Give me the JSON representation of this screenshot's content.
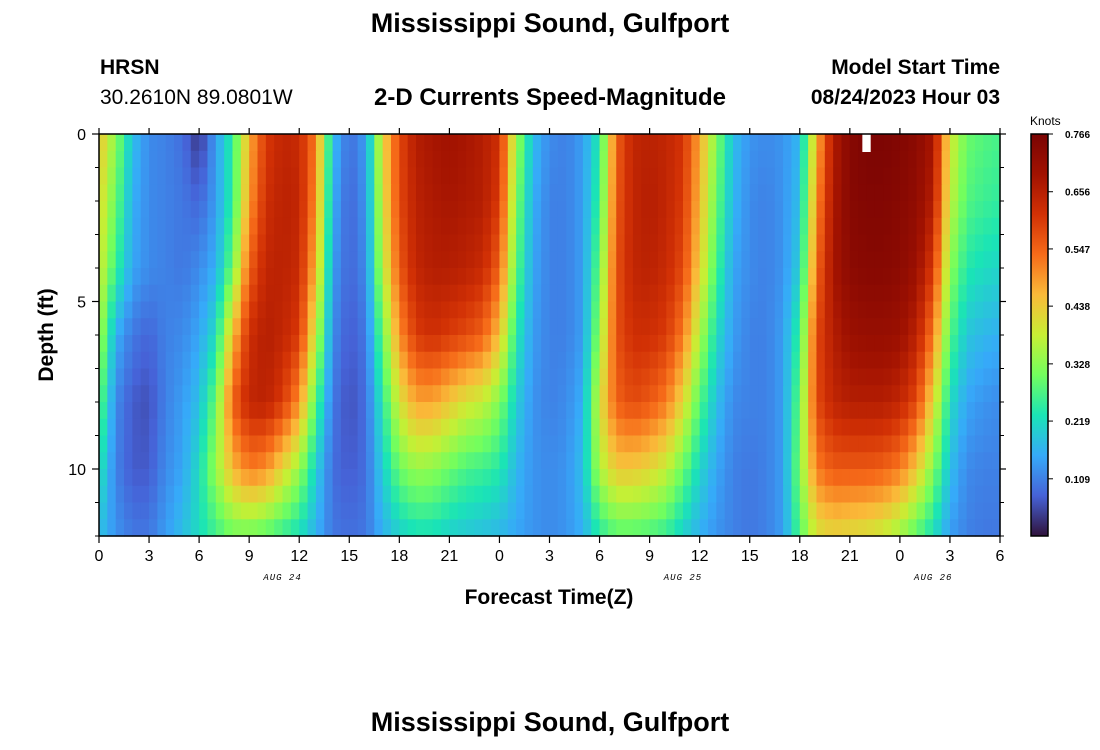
{
  "header": {
    "title": "Mississippi Sound, Gulfport",
    "station": "HRSN",
    "coordinates": "30.2610N  89.0801W",
    "subtitle": "2-D Currents Speed-Magnitude",
    "model_start_label": "Model Start Time",
    "model_start_value": "08/24/2023 Hour 03",
    "footer_title": "Mississippi Sound, Gulfport"
  },
  "chart_data": {
    "type": "heatmap",
    "title": "2-D Currents Speed-Magnitude",
    "xlabel": "Forecast Time(Z)",
    "ylabel": "Depth (ft)",
    "x_tick_labels": [
      "0",
      "3",
      "6",
      "9",
      "12",
      "15",
      "18",
      "21",
      "0",
      "3",
      "6",
      "9",
      "12",
      "15",
      "18",
      "21",
      "0",
      "3",
      "6"
    ],
    "x_range_hours": [
      0,
      54
    ],
    "date_labels": [
      {
        "text": "AUG 24",
        "hour": 11
      },
      {
        "text": "AUG 25",
        "hour": 35
      },
      {
        "text": "AUG 26",
        "hour": 50
      }
    ],
    "y_tick_labels": [
      "0",
      "5",
      "10"
    ],
    "y_tick_values": [
      0,
      5,
      10
    ],
    "ylim": [
      0,
      12
    ],
    "y_inverted": true,
    "colorbar": {
      "label": "Knots",
      "ticks": [
        "0.766",
        "0.656",
        "0.547",
        "0.438",
        "0.328",
        "0.219",
        "0.109"
      ],
      "range": [
        0.0,
        0.766
      ],
      "colormap": "turbo"
    },
    "time_hours": [
      0,
      1,
      2,
      3,
      4,
      5,
      6,
      7,
      8,
      9,
      10,
      11,
      12,
      13,
      14,
      15,
      16,
      17,
      18,
      19,
      20,
      21,
      22,
      23,
      24,
      25,
      26,
      27,
      28,
      29,
      30,
      31,
      32,
      33,
      34,
      35,
      36,
      37,
      38,
      39,
      40,
      41,
      42,
      43,
      44,
      45,
      46,
      47,
      48,
      49,
      50,
      51,
      52,
      53,
      54
    ],
    "depth_ft": [
      0,
      2,
      4,
      6,
      8,
      10,
      12
    ],
    "speed_knots": [
      [
        0.45,
        0.33,
        0.18,
        0.12,
        0.11,
        0.09,
        0.03,
        0.14,
        0.25,
        0.47,
        0.6,
        0.64,
        0.63,
        0.52,
        0.18,
        0.09,
        0.14,
        0.42,
        0.58,
        0.66,
        0.68,
        0.69,
        0.68,
        0.66,
        0.62,
        0.35,
        0.18,
        0.12,
        0.11,
        0.14,
        0.24,
        0.55,
        0.64,
        0.65,
        0.64,
        0.61,
        0.48,
        0.32,
        0.18,
        0.13,
        0.12,
        0.13,
        0.17,
        0.46,
        0.66,
        0.74,
        0.76,
        0.76,
        0.75,
        0.73,
        0.68,
        0.4,
        0.3,
        0.28,
        0.27
      ],
      [
        0.42,
        0.3,
        0.16,
        0.12,
        0.11,
        0.1,
        0.08,
        0.14,
        0.25,
        0.49,
        0.62,
        0.65,
        0.64,
        0.5,
        0.16,
        0.08,
        0.13,
        0.4,
        0.58,
        0.65,
        0.67,
        0.68,
        0.67,
        0.66,
        0.6,
        0.32,
        0.16,
        0.11,
        0.11,
        0.14,
        0.26,
        0.56,
        0.64,
        0.66,
        0.64,
        0.6,
        0.46,
        0.3,
        0.17,
        0.12,
        0.11,
        0.13,
        0.18,
        0.5,
        0.67,
        0.74,
        0.75,
        0.75,
        0.74,
        0.72,
        0.66,
        0.38,
        0.28,
        0.26,
        0.25
      ],
      [
        0.4,
        0.26,
        0.15,
        0.12,
        0.11,
        0.1,
        0.12,
        0.16,
        0.3,
        0.55,
        0.64,
        0.65,
        0.63,
        0.46,
        0.14,
        0.08,
        0.12,
        0.37,
        0.56,
        0.64,
        0.66,
        0.66,
        0.65,
        0.63,
        0.55,
        0.29,
        0.15,
        0.11,
        0.11,
        0.14,
        0.3,
        0.57,
        0.64,
        0.65,
        0.63,
        0.58,
        0.43,
        0.27,
        0.15,
        0.12,
        0.11,
        0.13,
        0.2,
        0.54,
        0.68,
        0.73,
        0.74,
        0.74,
        0.73,
        0.7,
        0.6,
        0.33,
        0.24,
        0.22,
        0.21
      ],
      [
        0.36,
        0.16,
        0.1,
        0.08,
        0.11,
        0.12,
        0.15,
        0.22,
        0.45,
        0.62,
        0.66,
        0.64,
        0.6,
        0.38,
        0.12,
        0.07,
        0.1,
        0.3,
        0.5,
        0.6,
        0.62,
        0.6,
        0.58,
        0.55,
        0.45,
        0.24,
        0.14,
        0.11,
        0.11,
        0.14,
        0.34,
        0.57,
        0.62,
        0.62,
        0.6,
        0.52,
        0.36,
        0.22,
        0.14,
        0.11,
        0.11,
        0.14,
        0.26,
        0.58,
        0.66,
        0.7,
        0.71,
        0.71,
        0.7,
        0.65,
        0.52,
        0.28,
        0.19,
        0.17,
        0.16
      ],
      [
        0.3,
        0.12,
        0.07,
        0.06,
        0.11,
        0.14,
        0.18,
        0.3,
        0.55,
        0.64,
        0.65,
        0.6,
        0.5,
        0.28,
        0.1,
        0.06,
        0.09,
        0.24,
        0.4,
        0.48,
        0.48,
        0.44,
        0.4,
        0.38,
        0.32,
        0.2,
        0.13,
        0.11,
        0.12,
        0.16,
        0.4,
        0.55,
        0.58,
        0.56,
        0.52,
        0.42,
        0.28,
        0.18,
        0.12,
        0.11,
        0.11,
        0.14,
        0.3,
        0.58,
        0.64,
        0.66,
        0.66,
        0.66,
        0.64,
        0.58,
        0.42,
        0.22,
        0.15,
        0.13,
        0.12
      ],
      [
        0.24,
        0.11,
        0.07,
        0.07,
        0.12,
        0.15,
        0.22,
        0.34,
        0.46,
        0.52,
        0.5,
        0.42,
        0.34,
        0.2,
        0.09,
        0.07,
        0.09,
        0.2,
        0.3,
        0.34,
        0.33,
        0.3,
        0.27,
        0.26,
        0.24,
        0.17,
        0.13,
        0.12,
        0.13,
        0.18,
        0.36,
        0.44,
        0.44,
        0.42,
        0.38,
        0.3,
        0.21,
        0.15,
        0.11,
        0.1,
        0.11,
        0.14,
        0.32,
        0.52,
        0.56,
        0.56,
        0.56,
        0.55,
        0.52,
        0.44,
        0.32,
        0.18,
        0.12,
        0.11,
        0.11
      ],
      [
        0.18,
        0.13,
        0.1,
        0.1,
        0.14,
        0.18,
        0.22,
        0.26,
        0.3,
        0.3,
        0.28,
        0.25,
        0.22,
        0.16,
        0.1,
        0.09,
        0.1,
        0.16,
        0.2,
        0.22,
        0.22,
        0.2,
        0.19,
        0.18,
        0.17,
        0.15,
        0.13,
        0.12,
        0.13,
        0.16,
        0.24,
        0.28,
        0.28,
        0.27,
        0.25,
        0.2,
        0.16,
        0.13,
        0.11,
        0.1,
        0.11,
        0.14,
        0.28,
        0.4,
        0.42,
        0.41,
        0.4,
        0.38,
        0.34,
        0.28,
        0.22,
        0.14,
        0.11,
        0.1,
        0.1
      ]
    ],
    "masked_cells": [
      {
        "hour": 46,
        "depth_ft": 0
      }
    ]
  }
}
